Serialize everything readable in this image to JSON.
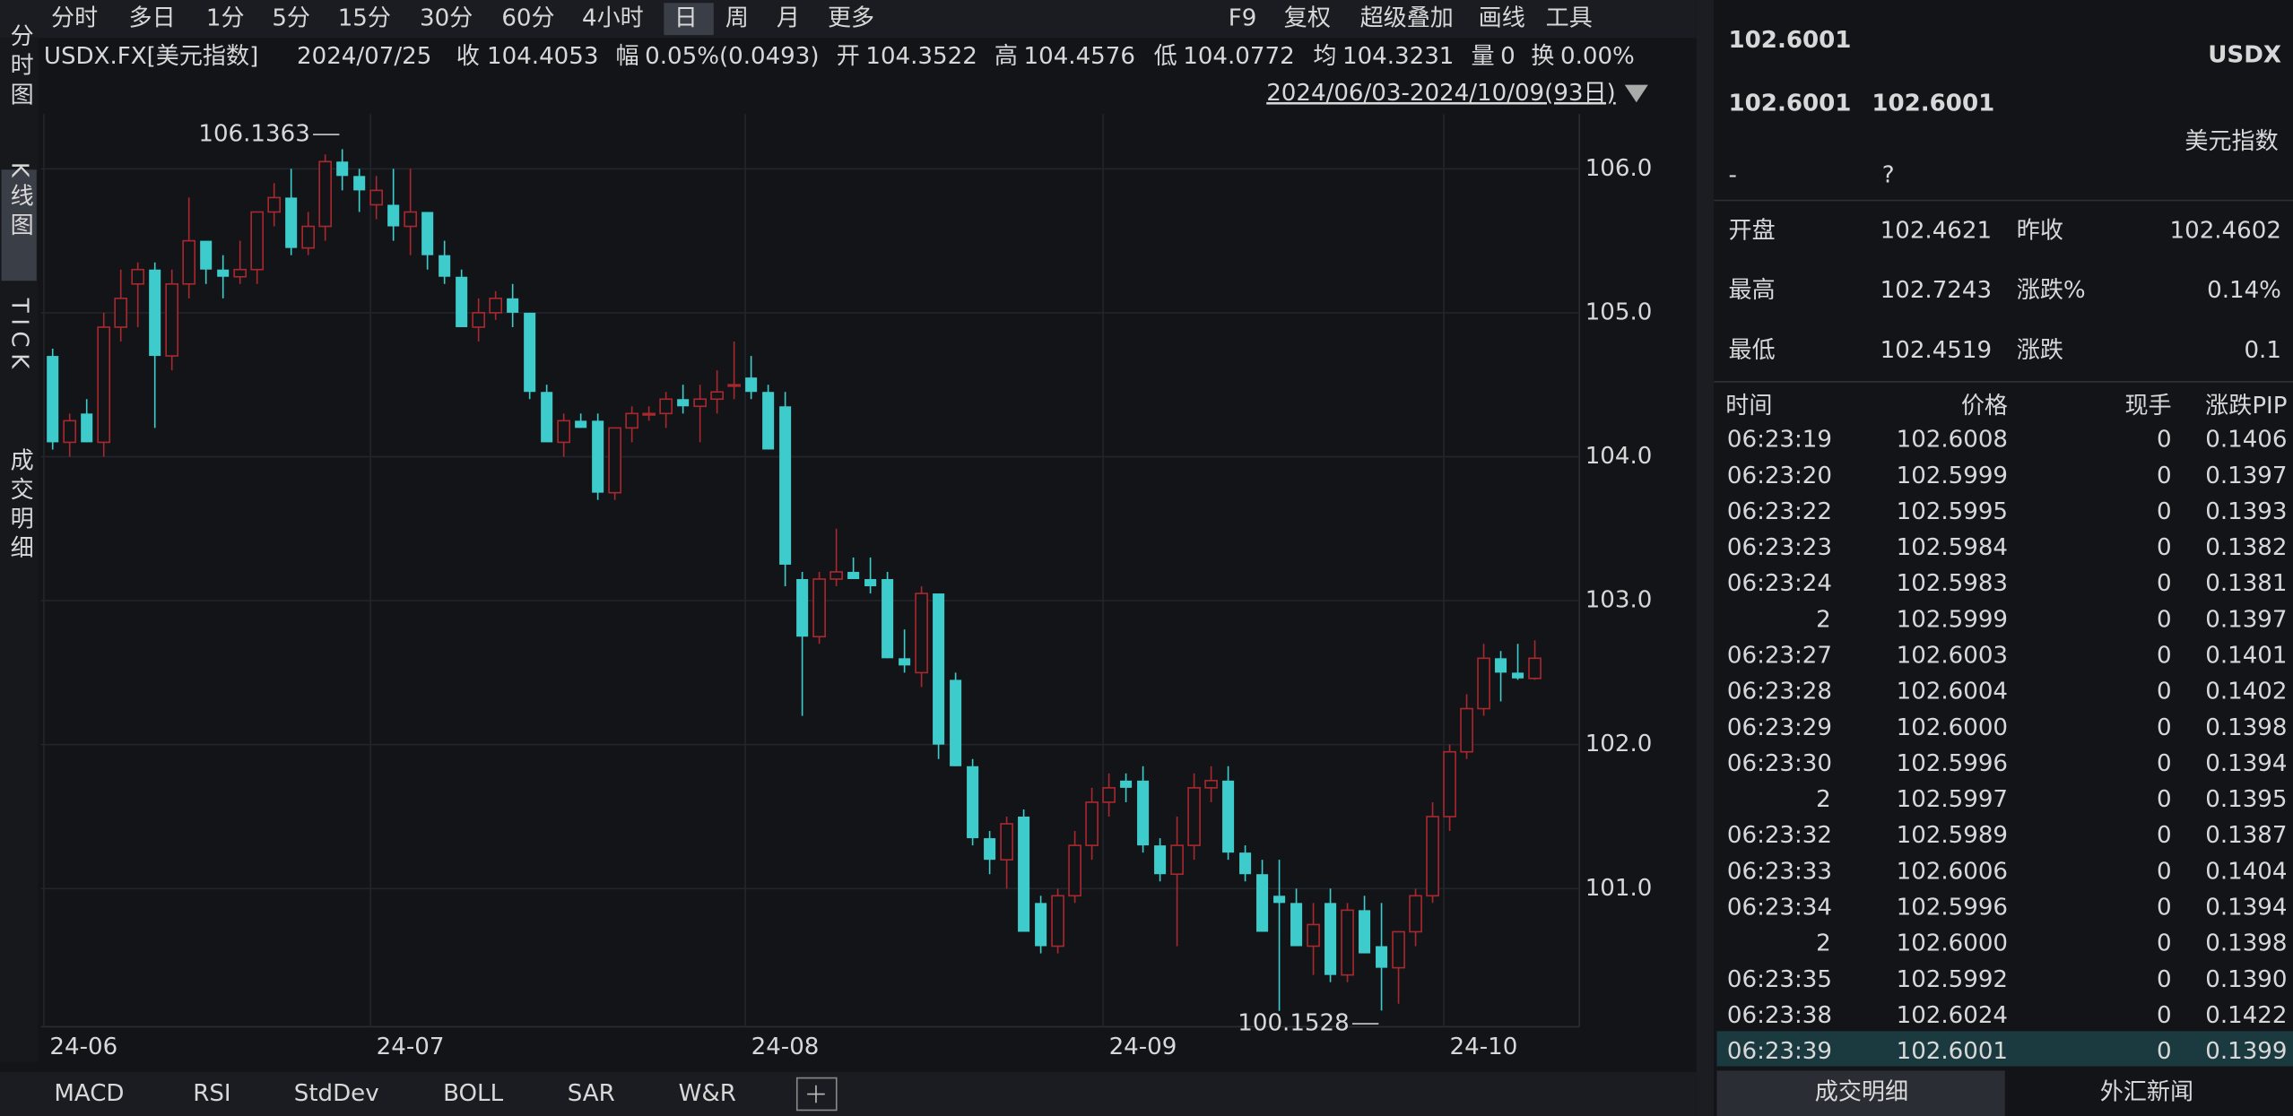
{
  "toolbar": {
    "periods": [
      "分时",
      "多日",
      "1分",
      "5分",
      "15分",
      "30分",
      "60分",
      "4小时",
      "日",
      "周",
      "月",
      "更多"
    ],
    "selected": 8,
    "tools": [
      "F9",
      "复权",
      "超级叠加",
      "画线",
      "工具"
    ]
  },
  "sidebar": [
    "分时图",
    "K线图",
    "TICK",
    "成交明细"
  ],
  "info": {
    "symbol": "USDX.FX[美元指数]",
    "date": "2024/07/25",
    "close_label": "收",
    "close": "104.4053",
    "change_label": "幅",
    "change": "0.05%(0.0493)",
    "open_label": "开",
    "open": "104.3522",
    "high_label": "高",
    "high": "104.4576",
    "low_label": "低",
    "low": "104.0772",
    "avg_label": "均",
    "avg": "104.3231",
    "vol_label": "量",
    "vol": "0",
    "turn_label": "换",
    "turn": "0.00%",
    "range": "2024/06/03-2024/10/09(93日)"
  },
  "chart_data": {
    "type": "candlestick",
    "up_color": "#e0343c",
    "down_color": "#3ecbcb",
    "candles": [
      [
        104.7,
        104.75,
        104.05,
        104.1
      ],
      [
        104.1,
        104.3,
        104.0,
        104.25
      ],
      [
        104.3,
        104.4,
        104.1,
        104.1
      ],
      [
        104.1,
        105.0,
        104.0,
        104.9
      ],
      [
        104.9,
        105.3,
        104.8,
        105.1
      ],
      [
        105.2,
        105.35,
        104.9,
        105.3
      ],
      [
        105.3,
        105.35,
        104.2,
        104.7
      ],
      [
        104.7,
        105.3,
        104.6,
        105.2
      ],
      [
        105.2,
        105.8,
        105.1,
        105.5
      ],
      [
        105.5,
        105.5,
        105.2,
        105.3
      ],
      [
        105.3,
        105.4,
        105.1,
        105.25
      ],
      [
        105.25,
        105.5,
        105.2,
        105.3
      ],
      [
        105.3,
        105.7,
        105.2,
        105.7
      ],
      [
        105.7,
        105.9,
        105.6,
        105.8
      ],
      [
        105.8,
        106.0,
        105.4,
        105.45
      ],
      [
        105.45,
        105.7,
        105.4,
        105.6
      ],
      [
        105.6,
        106.1,
        105.5,
        106.05
      ],
      [
        106.05,
        106.1363,
        105.85,
        105.95
      ],
      [
        105.95,
        106.0,
        105.7,
        105.85
      ],
      [
        105.75,
        105.95,
        105.65,
        105.85
      ],
      [
        105.75,
        106.0,
        105.5,
        105.6
      ],
      [
        105.6,
        106.0,
        105.4,
        105.7
      ],
      [
        105.7,
        105.7,
        105.3,
        105.4
      ],
      [
        105.4,
        105.5,
        105.2,
        105.25
      ],
      [
        105.25,
        105.3,
        104.9,
        104.9
      ],
      [
        104.9,
        105.1,
        104.8,
        105.0
      ],
      [
        105.0,
        105.15,
        104.95,
        105.1
      ],
      [
        105.1,
        105.2,
        104.9,
        105.0
      ],
      [
        105.0,
        105.0,
        104.4,
        104.45
      ],
      [
        104.45,
        104.5,
        104.1,
        104.1
      ],
      [
        104.1,
        104.3,
        104.0,
        104.25
      ],
      [
        104.25,
        104.3,
        104.2,
        104.2
      ],
      [
        104.25,
        104.3,
        103.7,
        103.75
      ],
      [
        103.75,
        104.2,
        103.7,
        104.2
      ],
      [
        104.2,
        104.35,
        104.1,
        104.3
      ],
      [
        104.3,
        104.35,
        104.25,
        104.3
      ],
      [
        104.3,
        104.45,
        104.2,
        104.4
      ],
      [
        104.4,
        104.5,
        104.3,
        104.35
      ],
      [
        104.35,
        104.5,
        104.1,
        104.4
      ],
      [
        104.4,
        104.6,
        104.3,
        104.45
      ],
      [
        104.5,
        104.8,
        104.4,
        104.5
      ],
      [
        104.55,
        104.7,
        104.4,
        104.45
      ],
      [
        104.45,
        104.5,
        104.05,
        104.05
      ],
      [
        104.35,
        104.45,
        103.1,
        103.25
      ],
      [
        103.15,
        103.2,
        102.2,
        102.75
      ],
      [
        102.75,
        103.2,
        102.7,
        103.15
      ],
      [
        103.15,
        103.5,
        103.1,
        103.2
      ],
      [
        103.2,
        103.3,
        103.15,
        103.15
      ],
      [
        103.15,
        103.3,
        103.05,
        103.1
      ],
      [
        103.15,
        103.2,
        102.6,
        102.6
      ],
      [
        102.6,
        102.8,
        102.5,
        102.55
      ],
      [
        102.5,
        103.1,
        102.4,
        103.05
      ],
      [
        103.05,
        103.05,
        101.9,
        102.0
      ],
      [
        102.45,
        102.5,
        101.85,
        101.85
      ],
      [
        101.85,
        101.9,
        101.3,
        101.35
      ],
      [
        101.35,
        101.4,
        101.1,
        101.2
      ],
      [
        101.2,
        101.5,
        101.0,
        101.45
      ],
      [
        101.5,
        101.55,
        100.7,
        100.7
      ],
      [
        100.9,
        100.95,
        100.55,
        100.6
      ],
      [
        100.6,
        101.0,
        100.55,
        100.95
      ],
      [
        100.95,
        101.4,
        100.9,
        101.3
      ],
      [
        101.3,
        101.7,
        101.2,
        101.6
      ],
      [
        101.6,
        101.8,
        101.5,
        101.7
      ],
      [
        101.75,
        101.8,
        101.6,
        101.7
      ],
      [
        101.75,
        101.85,
        101.25,
        101.3
      ],
      [
        101.3,
        101.35,
        101.05,
        101.1
      ],
      [
        101.1,
        101.5,
        100.6,
        101.3
      ],
      [
        101.3,
        101.8,
        101.2,
        101.7
      ],
      [
        101.7,
        101.85,
        101.6,
        101.75
      ],
      [
        101.75,
        101.85,
        101.2,
        101.25
      ],
      [
        101.25,
        101.3,
        101.05,
        101.1
      ],
      [
        101.1,
        101.2,
        100.7,
        100.7
      ],
      [
        100.95,
        101.2,
        100.15,
        100.9
      ],
      [
        100.9,
        101.0,
        100.6,
        100.6
      ],
      [
        100.6,
        100.9,
        100.4,
        100.75
      ],
      [
        100.9,
        101.0,
        100.35,
        100.4
      ],
      [
        100.4,
        100.9,
        100.35,
        100.85
      ],
      [
        100.85,
        100.95,
        100.55,
        100.55
      ],
      [
        100.6,
        100.9,
        100.1528,
        100.45
      ],
      [
        100.45,
        100.7,
        100.2,
        100.7
      ],
      [
        100.7,
        101.0,
        100.6,
        100.95
      ],
      [
        100.95,
        101.6,
        100.9,
        101.5
      ],
      [
        101.5,
        102.0,
        101.4,
        101.95
      ],
      [
        101.95,
        102.35,
        101.9,
        102.25
      ],
      [
        102.25,
        102.7,
        102.2,
        102.6
      ],
      [
        102.6,
        102.65,
        102.3,
        102.5
      ],
      [
        102.5,
        102.7,
        102.45,
        102.46
      ],
      [
        102.46,
        102.7243,
        102.45,
        102.6001
      ]
    ],
    "ylim": [
      100.04,
      106.38
    ],
    "yticks": [
      {
        "value": 101,
        "label": "101.0"
      },
      {
        "value": 102,
        "label": "102.0"
      },
      {
        "value": 103,
        "label": "103.0"
      },
      {
        "value": 104,
        "label": "104.0"
      },
      {
        "value": 105,
        "label": "105.0"
      },
      {
        "value": 106,
        "label": "106.0"
      }
    ],
    "xticks": [
      {
        "value": 0,
        "label": "24-06"
      },
      {
        "value": 19,
        "label": "24-07"
      },
      {
        "value": 41,
        "label": "24-08"
      },
      {
        "value": 62,
        "label": "24-09"
      },
      {
        "value": 82,
        "label": "24-10"
      }
    ],
    "annotations": [
      {
        "value": 106.1363,
        "index": 17,
        "label": "106.1363"
      },
      {
        "value": 100.1528,
        "index": 78,
        "label": "100.1528"
      }
    ]
  },
  "indicators": [
    "MACD",
    "RSI",
    "StdDev",
    "BOLL",
    "SAR",
    "W&R"
  ],
  "quote": {
    "last": "102.6001",
    "code": "USDX",
    "bid": "102.6001",
    "ask": "102.6001",
    "name": "美元指数",
    "dash": "-",
    "q": "?",
    "stats": [
      [
        "开盘",
        "102.4621",
        "昨收",
        "102.4602"
      ],
      [
        "最高",
        "102.7243",
        "涨跌%",
        "0.14%"
      ],
      [
        "最低",
        "102.4519",
        "涨跌",
        "0.1"
      ]
    ]
  },
  "ticks": {
    "header": [
      "时间",
      "价格",
      "现手",
      "涨跌PIP"
    ],
    "rows": [
      [
        "06:23:19",
        "102.6008",
        "0",
        "0.1406"
      ],
      [
        "06:23:20",
        "102.5999",
        "0",
        "0.1397"
      ],
      [
        "06:23:22",
        "102.5995",
        "0",
        "0.1393"
      ],
      [
        "06:23:23",
        "102.5984",
        "0",
        "0.1382"
      ],
      [
        "06:23:24",
        "102.5983",
        "0",
        "0.1381"
      ],
      [
        "2",
        "102.5999",
        "0",
        "0.1397"
      ],
      [
        "06:23:27",
        "102.6003",
        "0",
        "0.1401"
      ],
      [
        "06:23:28",
        "102.6004",
        "0",
        "0.1402"
      ],
      [
        "06:23:29",
        "102.6000",
        "0",
        "0.1398"
      ],
      [
        "06:23:30",
        "102.5996",
        "0",
        "0.1394"
      ],
      [
        "2",
        "102.5997",
        "0",
        "0.1395"
      ],
      [
        "06:23:32",
        "102.5989",
        "0",
        "0.1387"
      ],
      [
        "06:23:33",
        "102.6006",
        "0",
        "0.1404"
      ],
      [
        "06:23:34",
        "102.5996",
        "0",
        "0.1394"
      ],
      [
        "2",
        "102.6000",
        "0",
        "0.1398"
      ],
      [
        "06:23:35",
        "102.5992",
        "0",
        "0.1390"
      ],
      [
        "06:23:38",
        "102.6024",
        "0",
        "0.1422"
      ],
      [
        "06:23:39",
        "102.6001",
        "0",
        "0.1399"
      ]
    ]
  },
  "tabs": [
    "成交明细",
    "外汇新闻"
  ]
}
